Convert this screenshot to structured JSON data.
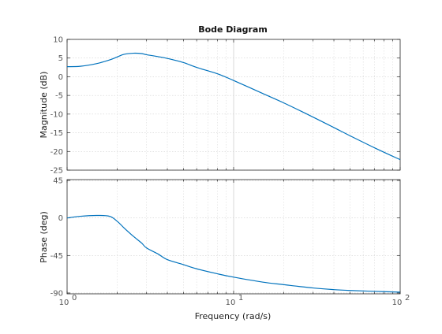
{
  "chart_data": [
    {
      "type": "line",
      "title": "Bode Diagram",
      "xlabel": "Frequency  (rad/s)",
      "ylabel": "Magnitude (dB)",
      "xscale": "log",
      "xlim": [
        1,
        100
      ],
      "ylim": [
        -25,
        10
      ],
      "grid": true,
      "line_color": "#0072BD",
      "yticks": [
        "10",
        "5",
        "0",
        "-5",
        "-10",
        "-15",
        "-20",
        "-25"
      ],
      "ytick_values": [
        10,
        5,
        0,
        -5,
        -10,
        -15,
        -20,
        -25
      ],
      "series": [
        {
          "x": [
            1,
            1.2,
            1.5,
            1.8,
            2.0,
            2.2,
            2.5,
            2.8,
            3.0,
            3.5,
            4.0,
            5.0,
            6.0,
            8.0,
            10,
            15,
            20,
            30,
            40,
            50,
            70,
            100
          ],
          "y": [
            2.7,
            2.8,
            3.5,
            4.5,
            5.3,
            6.0,
            6.3,
            6.2,
            5.9,
            5.4,
            4.9,
            3.8,
            2.5,
            0.8,
            -1.0,
            -4.5,
            -7.0,
            -10.8,
            -13.6,
            -15.8,
            -19.0,
            -22.2
          ]
        }
      ]
    },
    {
      "type": "line",
      "title": "",
      "xlabel": "Frequency  (rad/s)",
      "ylabel": "Phase (deg)",
      "xscale": "log",
      "xlim": [
        1,
        100
      ],
      "ylim": [
        -91,
        46
      ],
      "grid": true,
      "line_color": "#0072BD",
      "yticks": [
        "45",
        "0",
        "-45",
        "-90"
      ],
      "ytick_values": [
        45,
        0,
        -45,
        -90
      ],
      "xticks": [
        {
          "base": "10",
          "exp": "0",
          "value": 1
        },
        {
          "base": "10",
          "exp": "1",
          "value": 10
        },
        {
          "base": "10",
          "exp": "2",
          "value": 100
        }
      ],
      "series": [
        {
          "x": [
            1,
            1.2,
            1.5,
            1.8,
            2.0,
            2.2,
            2.5,
            2.8,
            3.0,
            3.5,
            4.0,
            5.0,
            6.0,
            8.0,
            10,
            15,
            20,
            30,
            40,
            50,
            70,
            100
          ],
          "y": [
            0,
            2,
            3,
            2,
            -4,
            -12,
            -22,
            -30,
            -36,
            -43,
            -50,
            -56,
            -61,
            -67,
            -71,
            -77,
            -80,
            -84,
            -86,
            -87,
            -88,
            -89
          ]
        }
      ]
    }
  ]
}
